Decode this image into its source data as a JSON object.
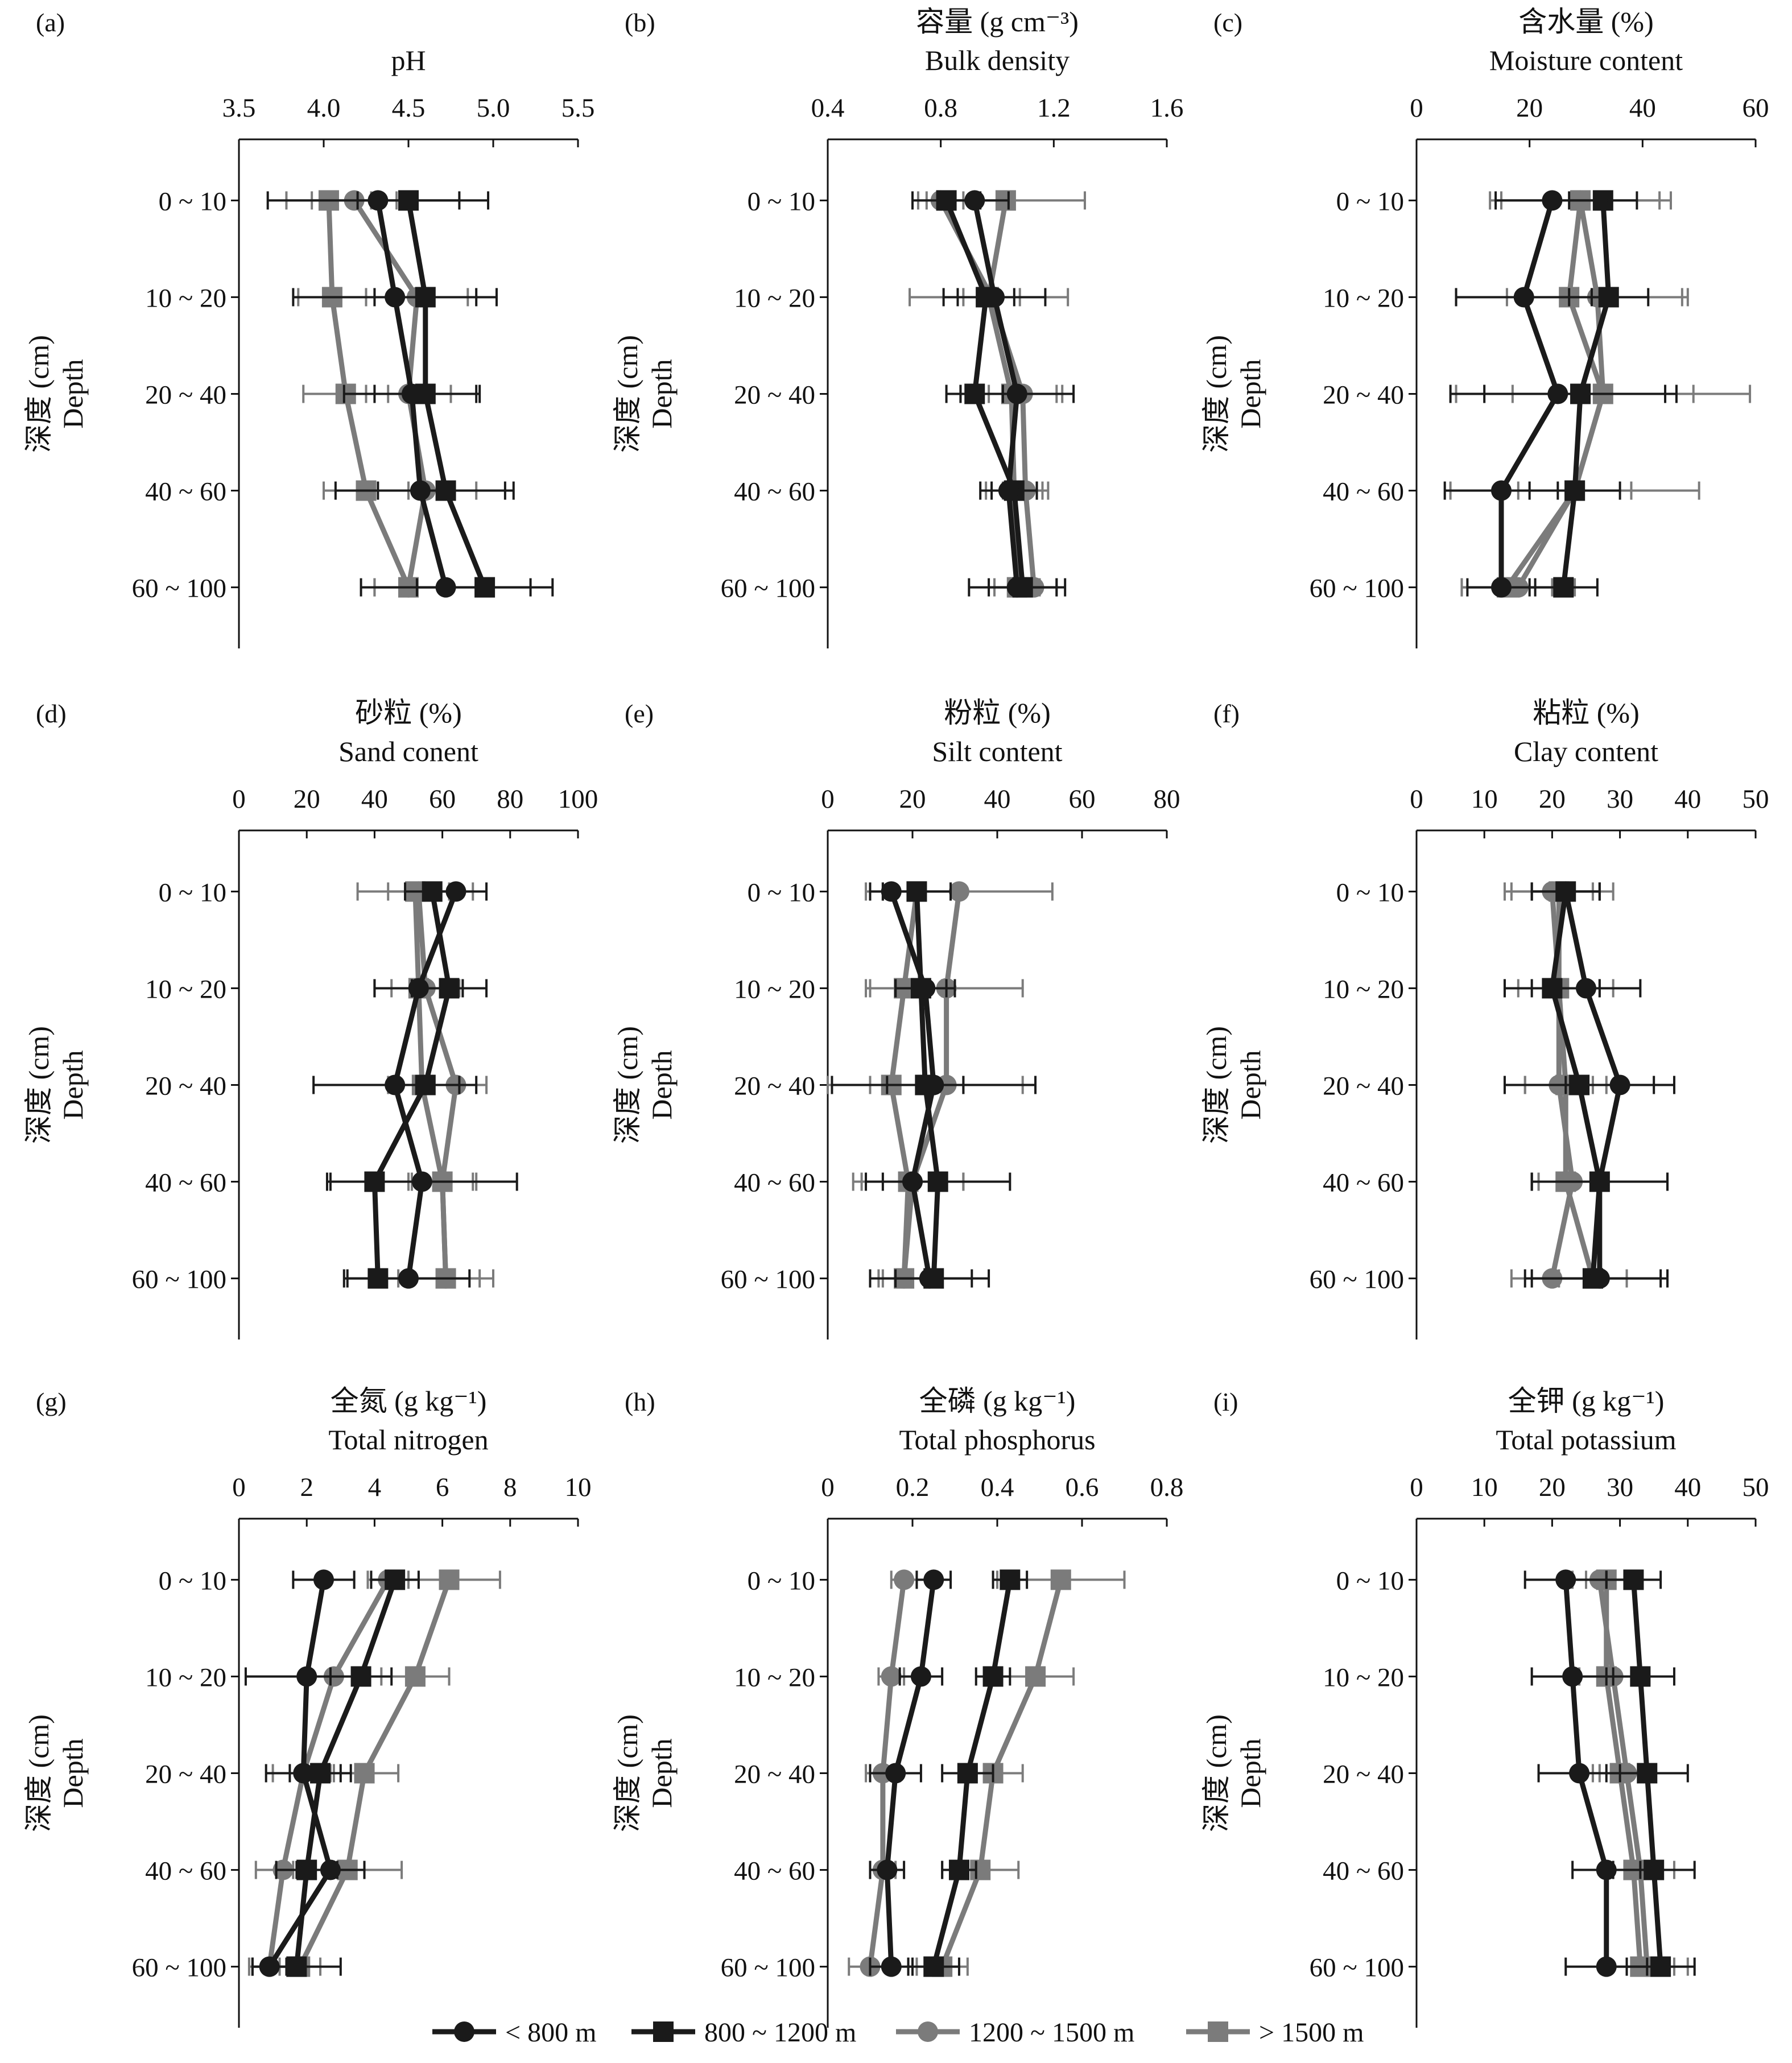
{
  "colors": {
    "<800": "#1a1a1a",
    "800-1200": "#1a1a1a",
    "1200-1500": "#7b7b7b",
    ">1500": "#7b7b7b"
  },
  "legend": [
    {
      "label": "< 800 m",
      "marker": "circle",
      "color": "#1a1a1a"
    },
    {
      "label": "800 ~ 1200 m",
      "marker": "square",
      "color": "#1a1a1a"
    },
    {
      "label": "1200 ~ 1500 m",
      "marker": "circle",
      "color": "#7b7b7b"
    },
    {
      "label": "> 1500 m",
      "marker": "square",
      "color": "#7b7b7b"
    }
  ],
  "ylabel_cn": "深度 (cm)",
  "ylabel_en": "Depth",
  "chart_data": [
    {
      "panel": "(a)",
      "type": "line",
      "title_cn": "",
      "title_en": "pH",
      "categories": [
        "0 ~ 10",
        "10 ~ 20",
        "20 ~ 40",
        "40 ~ 60",
        "60 ~ 100"
      ],
      "xlim": [
        3.5,
        5.5
      ],
      "xticks": [
        "3.5",
        "4.0",
        "4.5",
        "5.0",
        "5.5"
      ],
      "series": [
        {
          "name": "< 800 m",
          "values": [
            4.32,
            4.42,
            4.52,
            4.57,
            4.72
          ],
          "err": [
            0.65,
            0.6,
            0.4,
            0.5,
            0.5
          ]
        },
        {
          "name": "800 ~ 1200 m",
          "values": [
            4.5,
            4.6,
            4.6,
            4.72,
            4.95
          ],
          "err": [
            0.3,
            0.3,
            0.3,
            0.4,
            0.4
          ]
        },
        {
          "name": "1200 ~ 1500 m",
          "values": [
            4.18,
            4.55,
            4.5,
            4.6,
            4.5
          ],
          "err": [
            0.25,
            0.3,
            0.25,
            0.3,
            0.2
          ]
        },
        {
          "name": "> 1500 m",
          "values": [
            4.03,
            4.05,
            4.13,
            4.25,
            4.5
          ],
          "err": [
            0.25,
            0.2,
            0.25,
            0.25,
            0.2
          ]
        }
      ]
    },
    {
      "panel": "(b)",
      "type": "line",
      "title_cn": "容量 (g cm⁻³)",
      "title_en": "Bulk density",
      "categories": [
        "0 ~ 10",
        "10 ~ 20",
        "20 ~ 40",
        "40 ~ 60",
        "60 ~ 100"
      ],
      "xlim": [
        0.4,
        1.6
      ],
      "xticks": [
        "0.4",
        "0.8",
        "1.2",
        "1.6"
      ],
      "series": [
        {
          "name": "< 800 m",
          "values": [
            0.92,
            0.99,
            1.07,
            1.04,
            1.07
          ],
          "err": [
            0.12,
            0.18,
            0.2,
            0.1,
            0.17
          ]
        },
        {
          "name": "800 ~ 1200 m",
          "values": [
            0.82,
            0.96,
            0.92,
            1.06,
            1.09
          ],
          "err": [
            0.12,
            0.1,
            0.1,
            0.08,
            0.12
          ]
        },
        {
          "name": "1200 ~ 1500 m",
          "values": [
            0.8,
            0.98,
            1.09,
            1.1,
            1.13
          ],
          "err": [
            0.08,
            0.1,
            0.12,
            0.08,
            0.08
          ]
        },
        {
          "name": "> 1500 m",
          "values": [
            1.03,
            0.97,
            1.05,
            1.06,
            1.07
          ],
          "err": [
            0.28,
            0.28,
            0.18,
            0.1,
            0.08
          ]
        }
      ]
    },
    {
      "panel": "(c)",
      "type": "line",
      "title_cn": "含水量 (%)",
      "title_en": "Moisture content",
      "categories": [
        "0 ~ 10",
        "10 ~ 20",
        "20 ~ 40",
        "40 ~ 60",
        "60 ~ 100"
      ],
      "xlim": [
        0,
        60
      ],
      "xticks": [
        "0",
        "20",
        "40",
        "60"
      ],
      "series": [
        {
          "name": "< 800 m",
          "values": [
            24,
            19,
            25,
            15,
            15
          ],
          "err": [
            10,
            12,
            19,
            10,
            6
          ]
        },
        {
          "name": "800 ~ 1200 m",
          "values": [
            33,
            34,
            29,
            28,
            26
          ],
          "err": [
            6,
            7,
            17,
            8,
            6
          ]
        },
        {
          "name": "1200 ~ 1500 m",
          "values": [
            29,
            32,
            33,
            28,
            18
          ],
          "err": [
            14,
            16,
            16,
            10,
            10
          ]
        },
        {
          "name": "> 1500 m",
          "values": [
            29,
            27,
            33,
            28,
            16
          ],
          "err": [
            16,
            20,
            26,
            22,
            8
          ]
        }
      ]
    },
    {
      "panel": "(d)",
      "type": "line",
      "title_cn": "砂粒 (%)",
      "title_en": "Sand conent",
      "categories": [
        "0 ~ 10",
        "10 ~ 20",
        "20 ~ 40",
        "40 ~ 60",
        "60 ~ 100"
      ],
      "xlim": [
        0,
        100
      ],
      "xticks": [
        "0",
        "20",
        "40",
        "60",
        "80",
        "100"
      ],
      "series": [
        {
          "name": "< 800 m",
          "values": [
            64,
            53,
            46,
            54,
            50
          ],
          "err": [
            9,
            13,
            24,
            28,
            18
          ]
        },
        {
          "name": "800 ~ 1200 m",
          "values": [
            57,
            62,
            55,
            40,
            41
          ],
          "err": [
            8,
            11,
            10,
            13,
            10
          ]
        },
        {
          "name": "1200 ~ 1500 m",
          "values": [
            53,
            55,
            64,
            60,
            61
          ],
          "err": [
            9,
            10,
            9,
            10,
            10
          ]
        },
        {
          "name": "> 1500 m",
          "values": [
            52,
            53,
            54,
            60,
            61
          ],
          "err": [
            17,
            13,
            10,
            9,
            14
          ]
        }
      ]
    },
    {
      "panel": "(e)",
      "type": "line",
      "title_cn": "粉粒 (%)",
      "title_en": "Silt content",
      "categories": [
        "0 ~ 10",
        "10 ~ 20",
        "20 ~ 40",
        "40 ~ 60",
        "60 ~ 100"
      ],
      "xlim": [
        0,
        80
      ],
      "xticks": [
        "0",
        "20",
        "40",
        "60",
        "80"
      ],
      "series": [
        {
          "name": "< 800 m",
          "values": [
            15,
            23,
            25,
            20,
            24
          ],
          "err": [
            5,
            7,
            24,
            7,
            14
          ]
        },
        {
          "name": "800 ~ 1200 m",
          "values": [
            21,
            22,
            23,
            26,
            25
          ],
          "err": [
            8,
            6,
            9,
            17,
            9
          ]
        },
        {
          "name": "1200 ~ 1500 m",
          "values": [
            31,
            28,
            28,
            20,
            18
          ],
          "err": [
            22,
            18,
            18,
            12,
            6
          ]
        },
        {
          "name": "> 1500 m",
          "values": [
            21,
            18,
            15,
            19,
            18
          ],
          "err": [
            8,
            9,
            17,
            13,
            5
          ]
        }
      ]
    },
    {
      "panel": "(f)",
      "type": "line",
      "title_cn": "粘粒 (%)",
      "title_en": "Clay content",
      "categories": [
        "0 ~ 10",
        "10 ~ 20",
        "20 ~ 40",
        "40 ~ 60",
        "60 ~ 100"
      ],
      "xlim": [
        0,
        50
      ],
      "xticks": [
        "0",
        "10",
        "20",
        "30",
        "40",
        "50"
      ],
      "series": [
        {
          "name": "< 800 m",
          "values": [
            22,
            25,
            30,
            27,
            27
          ],
          "err": [
            5,
            8,
            8,
            10,
            10
          ]
        },
        {
          "name": "800 ~ 1200 m",
          "values": [
            22,
            20,
            24,
            27,
            26
          ],
          "err": [
            5,
            7,
            11,
            10,
            10
          ]
        },
        {
          "name": "1200 ~ 1500 m",
          "values": [
            20,
            21,
            21,
            23,
            20
          ],
          "err": [
            6,
            6,
            5,
            5,
            6
          ]
        },
        {
          "name": "> 1500 m",
          "values": [
            21,
            21,
            22,
            22,
            26
          ],
          "err": [
            8,
            8,
            6,
            5,
            5
          ]
        }
      ]
    },
    {
      "panel": "(g)",
      "type": "line",
      "title_cn": "全氮 (g kg⁻¹)",
      "title_en": "Total nitrogen",
      "categories": [
        "0 ~ 10",
        "10 ~ 20",
        "20 ~ 40",
        "40 ~ 60",
        "60 ~ 100"
      ],
      "xlim": [
        0,
        10
      ],
      "xticks": [
        "0",
        "2",
        "4",
        "6",
        "8",
        "10"
      ],
      "series": [
        {
          "name": "< 800 m",
          "values": [
            2.5,
            2.0,
            1.9,
            2.7,
            0.9
          ],
          "err": [
            0.9,
            1.8,
            1.1,
            1.0,
            0.5
          ]
        },
        {
          "name": "800 ~ 1200 m",
          "values": [
            4.6,
            3.6,
            2.4,
            2.0,
            1.7
          ],
          "err": [
            0.7,
            0.9,
            0.9,
            0.9,
            1.3
          ]
        },
        {
          "name": "1200 ~ 1500 m",
          "values": [
            4.4,
            2.8,
            1.9,
            1.3,
            0.9
          ],
          "err": [
            0.6,
            0.8,
            0.9,
            0.8,
            0.6
          ]
        },
        {
          "name": "> 1500 m",
          "values": [
            6.2,
            5.2,
            3.7,
            3.2,
            1.8
          ],
          "err": [
            1.5,
            1.0,
            1.0,
            1.6,
            0.6
          ]
        }
      ]
    },
    {
      "panel": "(h)",
      "type": "line",
      "title_cn": "全磷 (g kg⁻¹)",
      "title_en": "Total phosphorus",
      "categories": [
        "0 ~ 10",
        "10 ~ 20",
        "20 ~ 40",
        "40 ~ 60",
        "60 ~ 100"
      ],
      "xlim": [
        0,
        0.8
      ],
      "xticks": [
        "0",
        "0.2",
        "0.4",
        "0.6",
        "0.8"
      ],
      "series": [
        {
          "name": "< 800 m",
          "values": [
            0.25,
            0.22,
            0.16,
            0.14,
            0.15
          ],
          "err": [
            0.04,
            0.05,
            0.06,
            0.04,
            0.05
          ]
        },
        {
          "name": "800 ~ 1200 m",
          "values": [
            0.43,
            0.39,
            0.33,
            0.31,
            0.25
          ],
          "err": [
            0.04,
            0.04,
            0.06,
            0.04,
            0.06
          ]
        },
        {
          "name": "1200 ~ 1500 m",
          "values": [
            0.18,
            0.15,
            0.13,
            0.13,
            0.1
          ],
          "err": [
            0.03,
            0.03,
            0.04,
            0.03,
            0.05
          ]
        },
        {
          "name": "> 1500 m",
          "values": [
            0.55,
            0.49,
            0.39,
            0.36,
            0.27
          ],
          "err": [
            0.15,
            0.09,
            0.07,
            0.09,
            0.06
          ]
        }
      ]
    },
    {
      "panel": "(i)",
      "type": "line",
      "title_cn": "全钾 (g kg⁻¹)",
      "title_en": "Total potassium",
      "categories": [
        "0 ~ 10",
        "10 ~ 20",
        "20 ~ 40",
        "40 ~ 60",
        "60 ~ 100"
      ],
      "xlim": [
        0,
        50
      ],
      "xticks": [
        "0",
        "10",
        "20",
        "30",
        "40",
        "50"
      ],
      "series": [
        {
          "name": "< 800 m",
          "values": [
            22,
            23,
            24,
            28,
            28
          ],
          "err": [
            6,
            6,
            6,
            5,
            6
          ]
        },
        {
          "name": "800 ~ 1200 m",
          "values": [
            32,
            33,
            34,
            35,
            36
          ],
          "err": [
            4,
            5,
            6,
            6,
            5
          ]
        },
        {
          "name": "1200 ~ 1500 m",
          "values": [
            27,
            29,
            31,
            33,
            34
          ],
          "err": [
            4,
            5,
            4,
            5,
            6
          ]
        },
        {
          "name": "> 1500 m",
          "values": [
            28,
            28,
            30,
            32,
            33
          ],
          "err": [
            3,
            4,
            4,
            4,
            5
          ]
        }
      ]
    }
  ]
}
